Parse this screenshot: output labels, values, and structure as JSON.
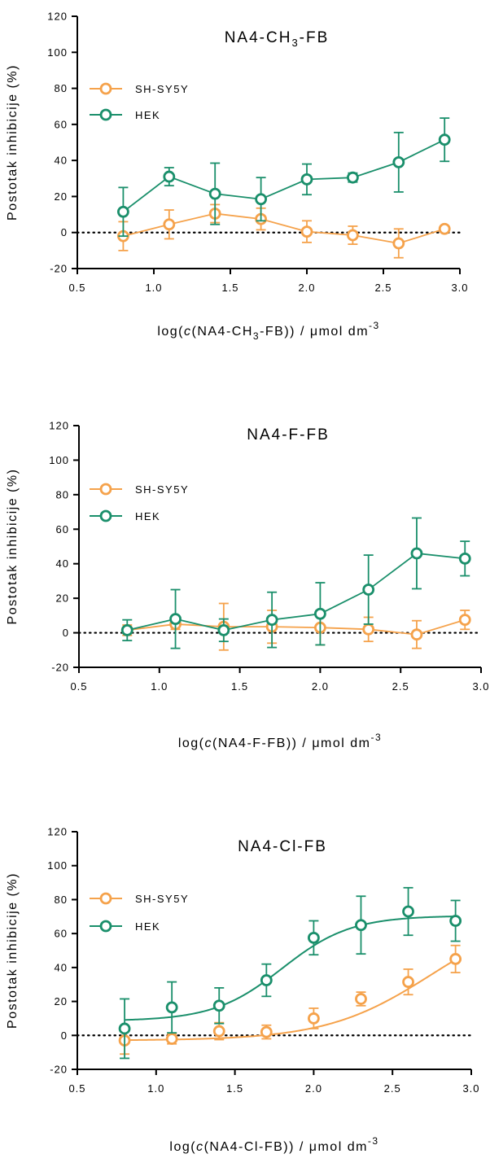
{
  "colors": {
    "SH-SY5Y": "#f5a24b",
    "HEK": "#1a8f6b",
    "axis": "#000000"
  },
  "chart_data": [
    {
      "type": "scatter",
      "title": "NA4-CH3-FB",
      "title_parts": [
        "NA4-CH",
        "3",
        "-FB"
      ],
      "ylabel": "Postotak inhibicije (%)",
      "xlabel_parts": [
        "log(",
        "c",
        "(NA4-CH",
        "3",
        "-FB)) / μmol dm",
        "-3"
      ],
      "xlim": [
        0.5,
        3.0
      ],
      "ylim": [
        -20,
        120
      ],
      "xticks": [
        0.5,
        1.0,
        1.5,
        2.0,
        2.5,
        3.0
      ],
      "xtick_labels": [
        "0.5",
        "1.0",
        "1.5",
        "2.0",
        "2.5",
        "3.0"
      ],
      "yticks": [
        -20,
        0,
        20,
        40,
        60,
        80,
        100,
        120
      ],
      "ytick_labels": [
        "-20",
        "0",
        "20",
        "40",
        "60",
        "80",
        "100",
        "120"
      ],
      "reference_line": 0,
      "legend_position": "upper-left",
      "connect": "segments",
      "series": [
        {
          "name": "SH-SY5Y",
          "x": [
            0.8,
            1.1,
            1.4,
            1.7,
            2.0,
            2.3,
            2.6,
            2.9
          ],
          "y": [
            -2,
            4.5,
            10.5,
            7.5,
            0.5,
            -1.5,
            -6,
            2
          ],
          "err": [
            8,
            8,
            5,
            6,
            6,
            5,
            8,
            1.5
          ]
        },
        {
          "name": "HEK",
          "x": [
            0.8,
            1.1,
            1.4,
            1.7,
            2.0,
            2.3,
            2.6,
            2.9
          ],
          "y": [
            11.5,
            31,
            21.5,
            18.5,
            29.5,
            30.5,
            39,
            51.5
          ],
          "err": [
            13.5,
            5,
            17,
            12,
            8.5,
            2.5,
            16.5,
            12
          ]
        }
      ]
    },
    {
      "type": "scatter",
      "title": "NA4-F-FB",
      "title_parts": [
        "NA4-F-FB",
        "",
        ""
      ],
      "ylabel": "Postotak inhibicije (%)",
      "xlabel_parts": [
        "log(",
        "c",
        "(NA4-F-FB)) / μmol dm",
        "",
        "",
        "-3"
      ],
      "xlim": [
        0.5,
        3.0
      ],
      "ylim": [
        -20,
        120
      ],
      "xticks": [
        0.5,
        1.0,
        1.5,
        2.0,
        2.5,
        3.0
      ],
      "xtick_labels": [
        "0.5",
        "1.0",
        "1.5",
        "2.0",
        "2.5",
        "3.0"
      ],
      "yticks": [
        -20,
        0,
        20,
        40,
        60,
        80,
        100,
        120
      ],
      "ytick_labels": [
        "-20",
        "0",
        "20",
        "40",
        "60",
        "80",
        "100",
        "120"
      ],
      "reference_line": 0,
      "legend_position": "upper-left",
      "connect": "segments",
      "series": [
        {
          "name": "SH-SY5Y",
          "x": [
            0.8,
            1.1,
            1.4,
            1.7,
            2.0,
            2.3,
            2.6,
            2.9
          ],
          "y": [
            1.5,
            5,
            3.5,
            3.5,
            3,
            2,
            -1,
            7.5
          ],
          "err": [
            3,
            3,
            13.5,
            9.5,
            10,
            7,
            8,
            5.5
          ]
        },
        {
          "name": "HEK",
          "x": [
            0.8,
            1.1,
            1.4,
            1.7,
            2.0,
            2.3,
            2.6,
            2.9
          ],
          "y": [
            1.5,
            8,
            1.5,
            7.5,
            11,
            25,
            46,
            43
          ],
          "err": [
            6,
            17,
            6.5,
            16,
            18,
            20,
            20.5,
            10
          ]
        }
      ]
    },
    {
      "type": "scatter",
      "title": "NA4-Cl-FB",
      "title_parts": [
        "NA4-Cl-FB",
        "",
        ""
      ],
      "ylabel": "Postotak inhibicije (%)",
      "xlabel_parts": [
        "log(",
        "c",
        "(NA4-Cl-FB)) / μmol dm",
        "",
        "",
        "-3"
      ],
      "xlim": [
        0.5,
        3.0
      ],
      "ylim": [
        -20,
        120
      ],
      "xticks": [
        0.5,
        1.0,
        1.5,
        2.0,
        2.5,
        3.0
      ],
      "xtick_labels": [
        "0.5",
        "1.0",
        "1.5",
        "2.0",
        "2.5",
        "3.0"
      ],
      "yticks": [
        -20,
        0,
        20,
        40,
        60,
        80,
        100,
        120
      ],
      "ytick_labels": [
        "-20",
        "0",
        "20",
        "40",
        "60",
        "80",
        "100",
        "120"
      ],
      "reference_line": 0,
      "legend_position": "upper-left",
      "connect": "sigmoid-fit",
      "series": [
        {
          "name": "SH-SY5Y",
          "x": [
            0.8,
            1.1,
            1.4,
            1.7,
            2.0,
            2.3,
            2.6,
            2.9
          ],
          "y": [
            -3,
            -2,
            2.5,
            2,
            10,
            21.5,
            31.5,
            45
          ],
          "err": [
            8,
            3,
            5,
            4,
            6,
            4,
            7.5,
            8
          ],
          "fit": {
            "bottom": -3,
            "top": 75,
            "logEC50": 2.75,
            "hill": 1.3
          }
        },
        {
          "name": "HEK",
          "x": [
            0.8,
            1.1,
            1.4,
            1.7,
            2.0,
            2.3,
            2.6,
            2.9
          ],
          "y": [
            4,
            16.5,
            17.5,
            32.5,
            57.5,
            65,
            73,
            67.5
          ],
          "err": [
            17.5,
            15,
            10.5,
            9.5,
            10,
            17,
            14,
            12
          ],
          "fit": {
            "bottom": 8.5,
            "top": 70.5,
            "logEC50": 1.8,
            "hill": 2.0
          }
        }
      ]
    }
  ]
}
